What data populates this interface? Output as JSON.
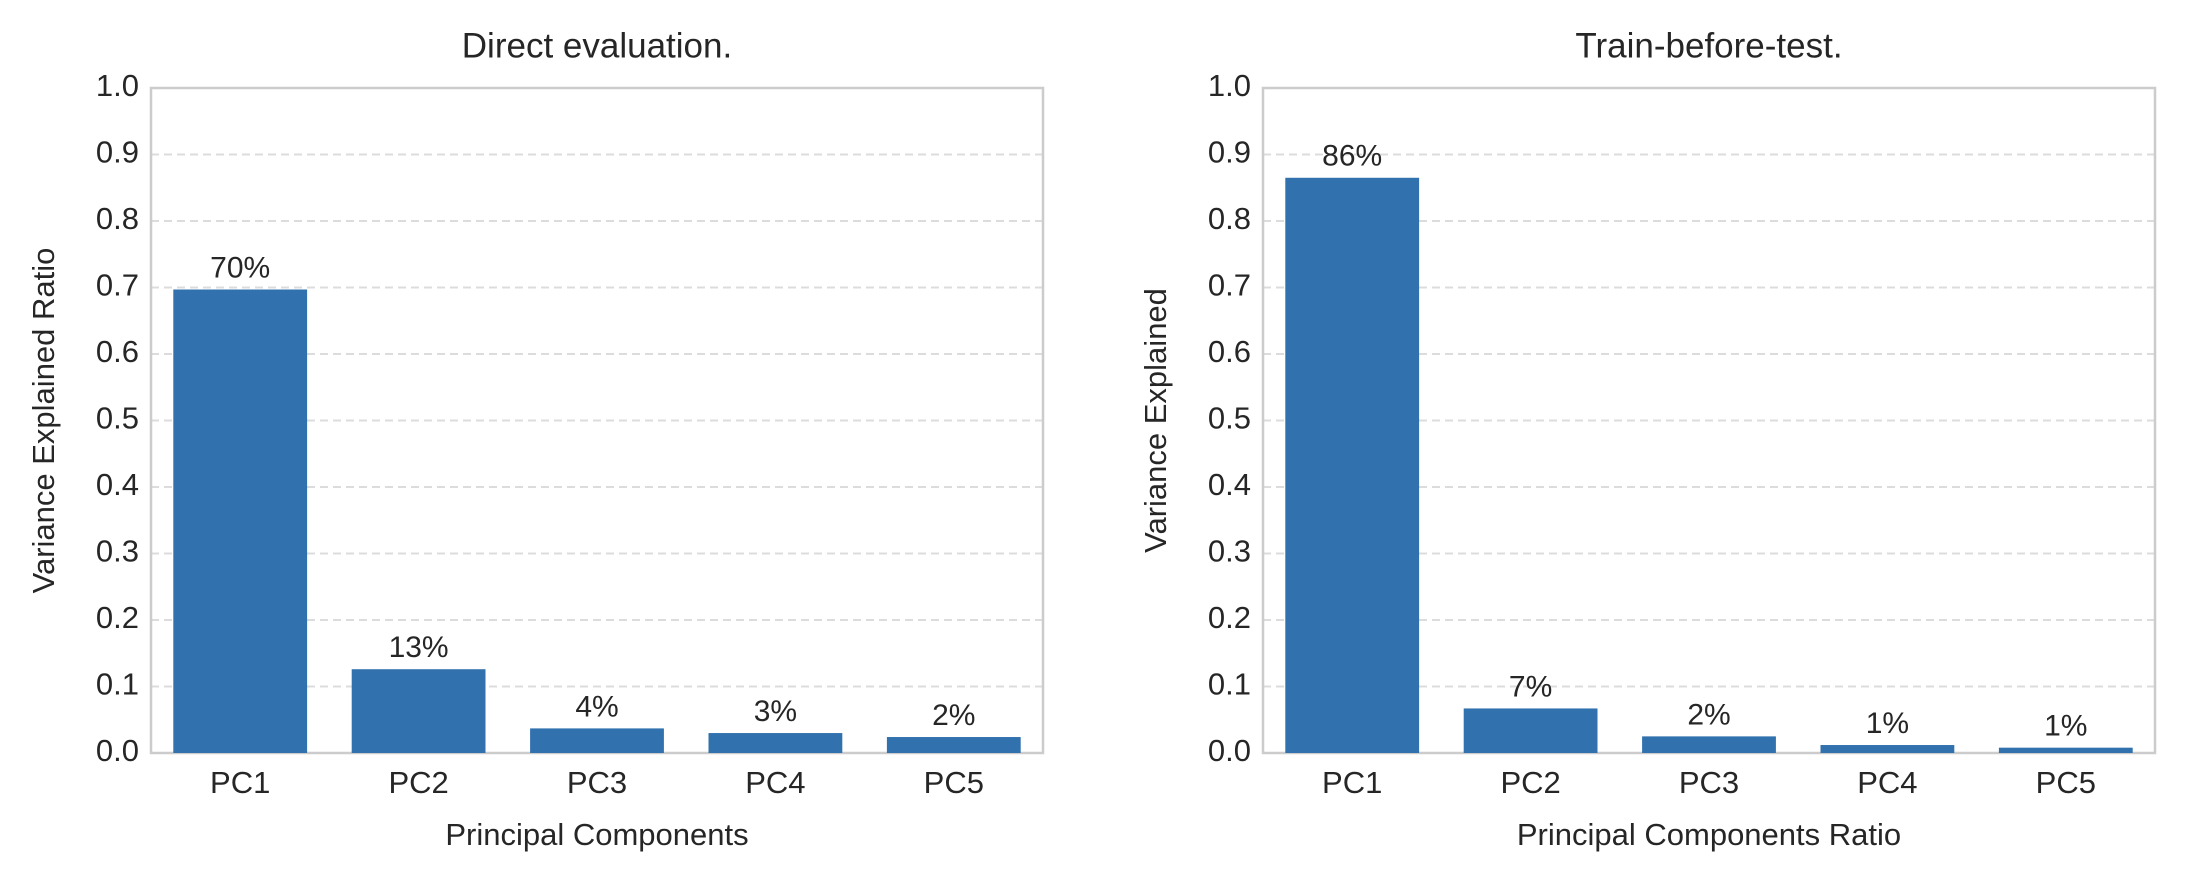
{
  "chart_data": [
    {
      "type": "bar",
      "title": "Direct evaluation.",
      "xlabel": "Principal Components",
      "ylabel": "Variance Explained Ratio",
      "categories": [
        "PC1",
        "PC2",
        "PC3",
        "PC4",
        "PC5"
      ],
      "values": [
        0.697,
        0.126,
        0.037,
        0.03,
        0.024
      ],
      "value_labels": [
        "70%",
        "13%",
        "4%",
        "3%",
        "2%"
      ],
      "color": "#3171ae",
      "ylim": [
        0,
        1
      ],
      "yticks": [
        {
          "value": 0,
          "label": "0.0"
        },
        0.1,
        0.2,
        0.3,
        0.4,
        0.5,
        0.6,
        0.7,
        0.8,
        0.9,
        {
          "value": 1,
          "label": "1.0"
        }
      ],
      "grid": true
    },
    {
      "type": "bar",
      "title": "Train-before-test.",
      "xlabel": "Principal Components Ratio",
      "ylabel": "Variance Explained",
      "categories": [
        "PC1",
        "PC2",
        "PC3",
        "PC4",
        "PC5"
      ],
      "values": [
        0.865,
        0.067,
        0.025,
        0.012,
        0.008
      ],
      "value_labels": [
        "86%",
        "7%",
        "2%",
        "1%",
        "1%"
      ],
      "color": "#3171ae",
      "ylim": [
        0,
        1
      ],
      "yticks": [
        {
          "value": 0,
          "label": "0.0"
        },
        0.1,
        0.2,
        0.3,
        0.4,
        0.5,
        0.6,
        0.7,
        0.8,
        0.9,
        {
          "value": 1,
          "label": "1.0"
        }
      ],
      "grid": true
    }
  ]
}
